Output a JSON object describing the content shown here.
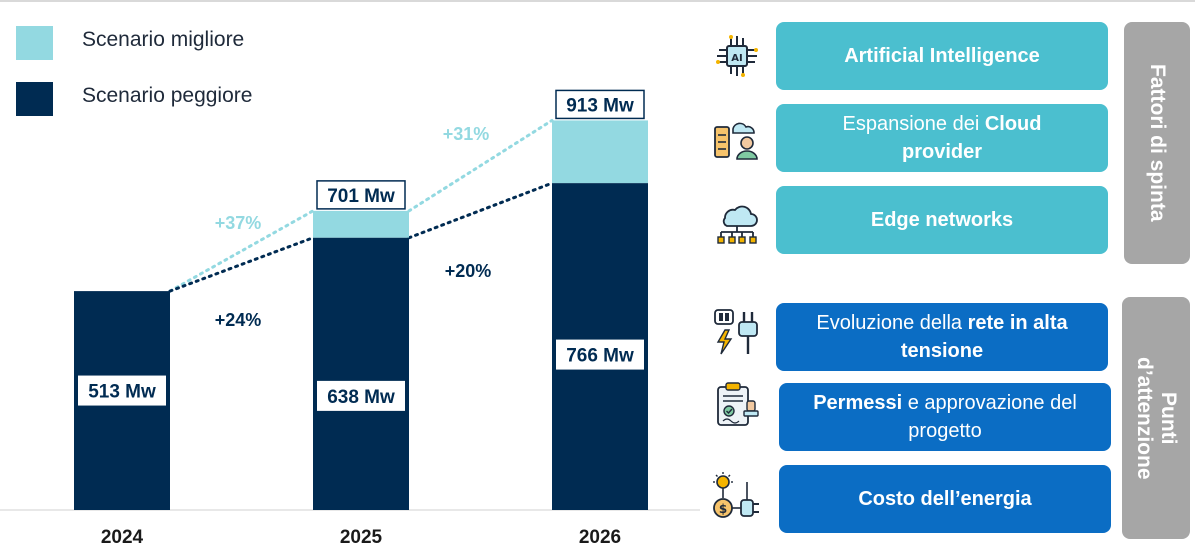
{
  "legend": {
    "best": {
      "label": "Scenario migliore",
      "color": "#93d9e1"
    },
    "worst": {
      "label": "Scenario peggiore",
      "color": "#002b52"
    }
  },
  "chart_data": {
    "type": "bar",
    "stacked": true,
    "categories": [
      "2024",
      "2025",
      "2026"
    ],
    "series": [
      {
        "name": "Scenario peggiore",
        "values": [
          513,
          638,
          766
        ],
        "labels": [
          "513 Mw",
          "638 Mw",
          "766 Mw"
        ],
        "color": "#002b52"
      },
      {
        "name": "Scenario migliore",
        "totals": [
          513,
          701,
          913
        ],
        "labels": [
          "",
          "701 Mw",
          "913 Mw"
        ],
        "color": "#93d9e1"
      }
    ],
    "growth": {
      "best": [
        "+37%",
        "+31%"
      ],
      "worst": [
        "+24%",
        "+20%"
      ]
    },
    "ylim": [
      0,
      1000
    ],
    "title": "",
    "xlabel": "",
    "ylabel": "",
    "legend_position": "top-left"
  },
  "drivers": {
    "tab_label": "Fattori di spinta",
    "items": [
      {
        "icon": "ai-chip-icon",
        "pre": "",
        "bold": "Artificial Intelligence",
        "post": ""
      },
      {
        "icon": "cloud-server-icon",
        "pre": "Espansione dei ",
        "bold": "Cloud provider",
        "post": ""
      },
      {
        "icon": "edge-network-icon",
        "pre": "",
        "bold": "Edge networks",
        "post": ""
      }
    ]
  },
  "attention": {
    "tab_label": "Punti\nd’attenzione",
    "items": [
      {
        "icon": "power-plug-icon",
        "pre": "Evoluzione della ",
        "bold": "rete in alta tensione",
        "post": ""
      },
      {
        "icon": "permit-document-icon",
        "pre": "",
        "bold": "Permessi",
        "post": " e approvazione del progetto"
      },
      {
        "icon": "energy-cost-icon",
        "pre": "",
        "bold": "Costo dell’energia",
        "post": ""
      }
    ]
  }
}
